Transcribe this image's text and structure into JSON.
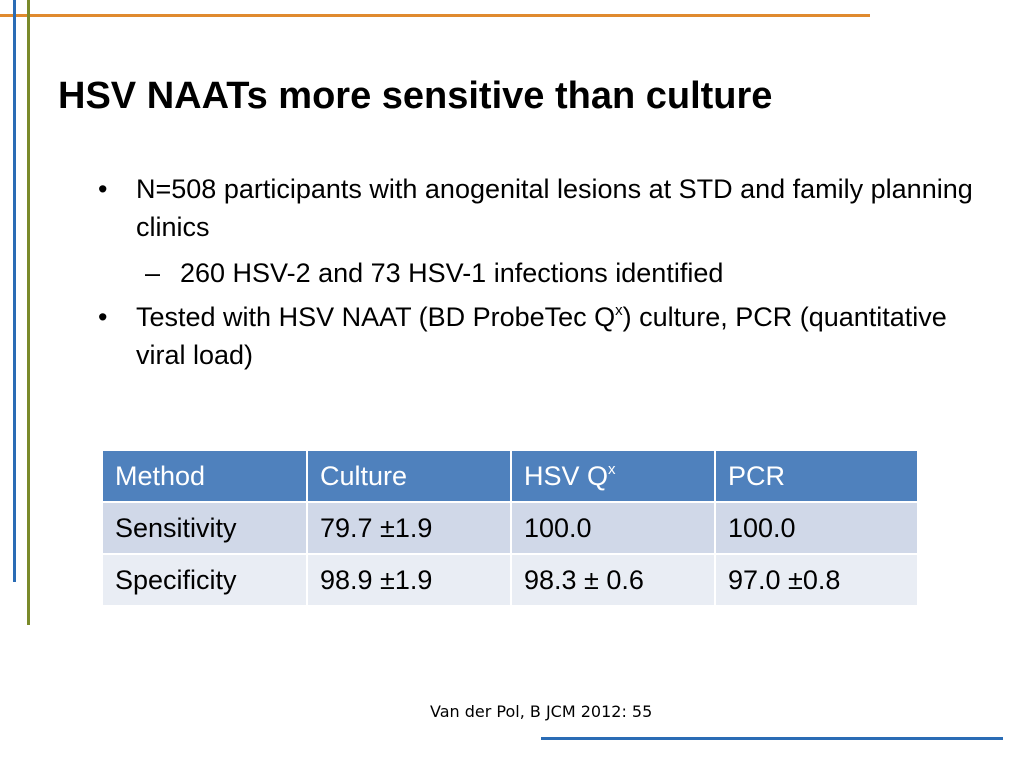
{
  "slide": {
    "title": "HSV NAATs more sensitive than  culture",
    "bullet_mark": "•",
    "sub_mark": "–",
    "bullets": [
      {
        "text": "N=508 participants with anogenital lesions at STD and family planning clinics"
      },
      {
        "text": "260 HSV-2 and 73 HSV-1 infections identified"
      },
      {
        "text_before": "Tested with HSV NAAT (BD ProbeTec Q",
        "sup": "x",
        "text_after": ") culture, PCR (quantitative viral load)"
      }
    ],
    "table": {
      "headers": [
        "Method",
        "Culture",
        "HSV Q",
        "PCR"
      ],
      "header_sup": "x",
      "rows": [
        [
          "Sensitivity",
          "79.7 ±1.9",
          "100.0",
          "100.0"
        ],
        [
          "Specificity",
          "98.9 ±1.9",
          "98.3 ± 0.6",
          "97.0 ±0.8"
        ]
      ]
    },
    "citation": "Van der Pol, B JCM 2012: 55",
    "colors": {
      "header_bg": "#4f81bd",
      "row1_bg": "#d0d8e8",
      "row2_bg": "#e9edf4",
      "accent_orange": "#e08a2e",
      "accent_blue": "#2a6cb5",
      "accent_olive": "#7a8a2a"
    }
  }
}
